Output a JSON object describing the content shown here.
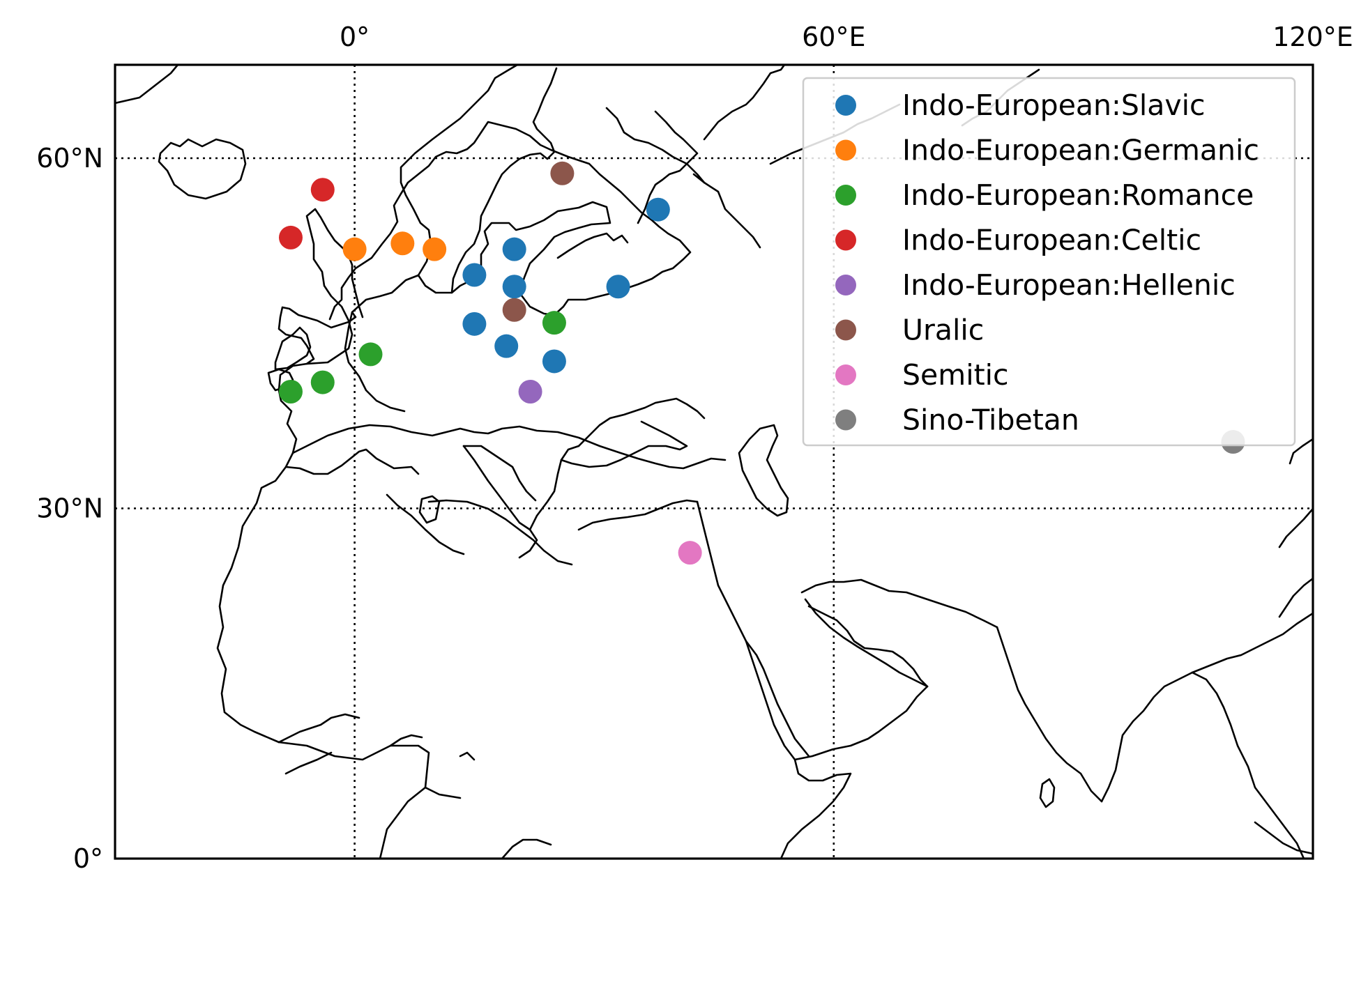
{
  "chart_data": {
    "type": "scatter",
    "projection": "plate-carree",
    "extent": {
      "lon": [
        -30,
        120
      ],
      "lat": [
        0,
        68
      ]
    },
    "xticks": [
      {
        "value": 0,
        "label": "0°"
      },
      {
        "value": 60,
        "label": "60°E"
      },
      {
        "value": 120,
        "label": "120°E"
      }
    ],
    "yticks": [
      {
        "value": 0,
        "label": "0°"
      },
      {
        "value": 30,
        "label": "30°N"
      },
      {
        "value": 60,
        "label": "60°N"
      }
    ],
    "grid": {
      "lon": [
        0,
        60
      ],
      "lat": [
        30,
        60
      ],
      "style": "dotted"
    },
    "legend_position": "top-right",
    "series": [
      {
        "name": "Indo-European:Slavic",
        "color": "#1f77b4",
        "points": [
          {
            "lon": 38,
            "lat": 55.6
          },
          {
            "lon": 20,
            "lat": 52.2
          },
          {
            "lon": 15,
            "lat": 50.0
          },
          {
            "lon": 20,
            "lat": 49.0
          },
          {
            "lon": 33,
            "lat": 49.0
          },
          {
            "lon": 15,
            "lat": 45.8
          },
          {
            "lon": 19,
            "lat": 43.9
          },
          {
            "lon": 25,
            "lat": 42.6
          }
        ]
      },
      {
        "name": "Indo-European:Germanic",
        "color": "#ff7f0e",
        "points": [
          {
            "lon": 0,
            "lat": 52.2
          },
          {
            "lon": 6,
            "lat": 52.7
          },
          {
            "lon": 10,
            "lat": 52.2
          }
        ]
      },
      {
        "name": "Indo-European:Romance",
        "color": "#2ca02c",
        "points": [
          {
            "lon": -8,
            "lat": 40.0
          },
          {
            "lon": -4,
            "lat": 40.8
          },
          {
            "lon": 2,
            "lat": 43.2
          },
          {
            "lon": 25,
            "lat": 45.9
          }
        ]
      },
      {
        "name": "Indo-European:Celtic",
        "color": "#d62728",
        "points": [
          {
            "lon": -4,
            "lat": 57.3
          },
          {
            "lon": -8,
            "lat": 53.2
          }
        ]
      },
      {
        "name": "Indo-European:Hellenic",
        "color": "#9467bd",
        "points": [
          {
            "lon": 22,
            "lat": 40.0
          }
        ]
      },
      {
        "name": "Uralic",
        "color": "#8c564b",
        "points": [
          {
            "lon": 26,
            "lat": 58.7
          },
          {
            "lon": 20,
            "lat": 47.0
          }
        ]
      },
      {
        "name": "Semitic",
        "color": "#e377c2",
        "points": [
          {
            "lon": 42,
            "lat": 26.2
          }
        ]
      },
      {
        "name": "Sino-Tibetan",
        "color": "#7f7f7f",
        "points": [
          {
            "lon": 110,
            "lat": 35.7
          }
        ]
      }
    ]
  }
}
